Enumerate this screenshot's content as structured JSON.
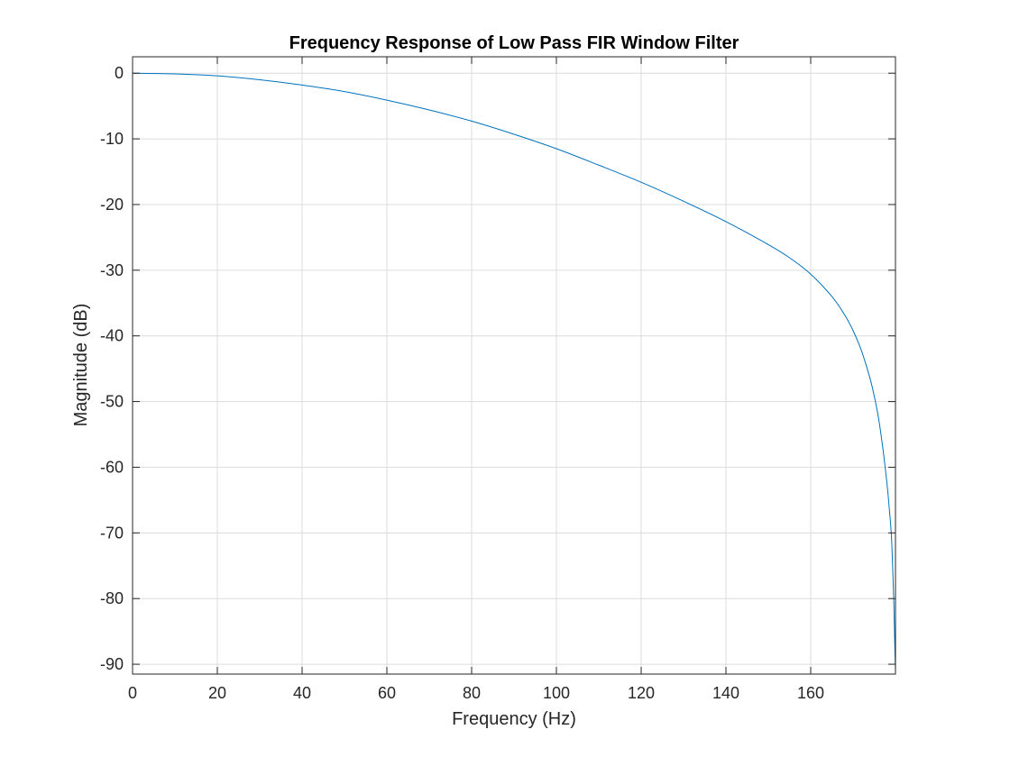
{
  "chart_data": {
    "type": "line",
    "title": "Frequency Response of Low Pass FIR Window Filter",
    "xlabel": "Frequency (Hz)",
    "ylabel": "Magnitude (dB)",
    "xlim": [
      0,
      180
    ],
    "ylim": [
      -91.5,
      2.5
    ],
    "grid": true,
    "x_ticks": [
      0,
      20,
      40,
      60,
      80,
      100,
      120,
      140,
      160
    ],
    "y_ticks": [
      0,
      -10,
      -20,
      -30,
      -40,
      -50,
      -60,
      -70,
      -80,
      -90
    ],
    "x_tick_labels": [
      "0",
      "20",
      "40",
      "60",
      "80",
      "100",
      "120",
      "140",
      "160"
    ],
    "y_tick_labels": [
      "0",
      "-10",
      "-20",
      "-30",
      "-40",
      "-50",
      "-60",
      "-70",
      "-80",
      "-90"
    ],
    "series": [
      {
        "color": "#0072BD",
        "x": [
          0,
          10,
          20,
          30,
          40,
          50,
          60,
          70,
          80,
          90,
          100,
          110,
          120,
          130,
          140,
          150,
          155,
          160,
          165,
          168,
          170,
          172,
          174,
          175,
          176,
          177,
          178,
          178.5,
          179,
          179.3,
          179.6,
          179.8,
          180
        ],
        "y": [
          0,
          -0.1,
          -0.4,
          -1.0,
          -1.8,
          -2.8,
          -4.1,
          -5.6,
          -7.3,
          -9.3,
          -11.5,
          -14.0,
          -16.6,
          -19.5,
          -22.6,
          -26.1,
          -28.1,
          -30.6,
          -34.0,
          -36.8,
          -39.2,
          -42.3,
          -46.5,
          -49.2,
          -52.5,
          -57.0,
          -62.5,
          -66.0,
          -70.0,
          -74.5,
          -80.5,
          -86.0,
          -91.0
        ]
      }
    ]
  },
  "colors": {
    "line": "#0072BD",
    "grid": "#dcdcdc",
    "axis": "#262626"
  }
}
